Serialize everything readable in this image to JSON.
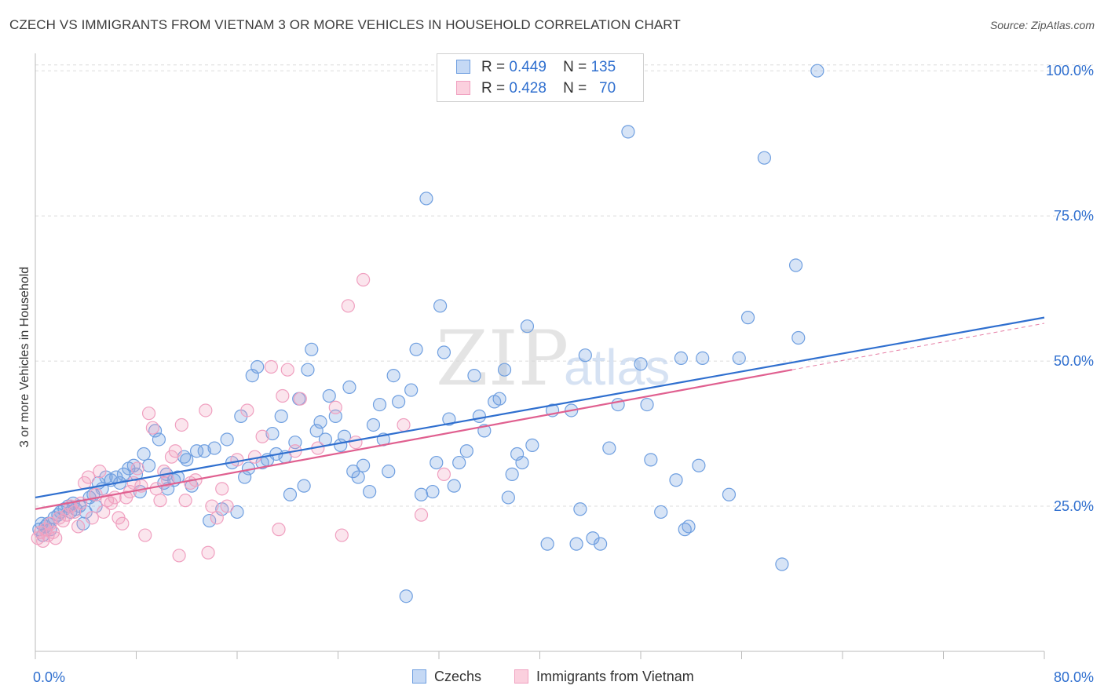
{
  "title": "CZECH VS IMMIGRANTS FROM VIETNAM 3 OR MORE VEHICLES IN HOUSEHOLD CORRELATION CHART",
  "source": "Source: ZipAtlas.com",
  "watermark": {
    "zip": "ZIP",
    "atlas": "atlas"
  },
  "legend": {
    "rows": [
      {
        "r_label": "R =",
        "r": "0.449",
        "n_label": "N =",
        "n": "135"
      },
      {
        "r_label": "R =",
        "r": "0.428",
        "n_label": "N =",
        "n": "70"
      }
    ]
  },
  "bottom_legend": {
    "czechs": "Czechs",
    "vietnam": "Immigrants from Vietnam"
  },
  "chart_data": {
    "type": "scatter",
    "ylabel": "3 or more Vehicles in Household",
    "xlim": [
      0,
      80
    ],
    "ylim": [
      0,
      103
    ],
    "x_tick_labels": [
      "0.0%",
      "80.0%"
    ],
    "y_tick_labels": [
      "25.0%",
      "50.0%",
      "75.0%",
      "100.0%"
    ],
    "y_ticks": [
      25,
      50,
      75,
      100
    ],
    "grid": true,
    "colors": {
      "czechs": "#6f9fe0",
      "vietnam": "#f0a0c0",
      "czechs_line": "#2f6fcf",
      "vietnam_line": "#e06090",
      "axis_label": "#2f6fcf"
    },
    "series": [
      {
        "name": "Czechs",
        "trend": {
          "x0": 0,
          "y0": 26.5,
          "x1": 80,
          "y1": 57.5
        },
        "points": [
          [
            0.3,
            21
          ],
          [
            0.5,
            22
          ],
          [
            0.6,
            20
          ],
          [
            0.8,
            21.5
          ],
          [
            1,
            22
          ],
          [
            1.2,
            21
          ],
          [
            1.5,
            23
          ],
          [
            1.8,
            23.5
          ],
          [
            2,
            24
          ],
          [
            2.3,
            24.5
          ],
          [
            2.6,
            25
          ],
          [
            2.8,
            24
          ],
          [
            3,
            25.5
          ],
          [
            3.2,
            24.5
          ],
          [
            3.5,
            25
          ],
          [
            3.8,
            22
          ],
          [
            4,
            24
          ],
          [
            4.3,
            26.5
          ],
          [
            4.6,
            27
          ],
          [
            5,
            29
          ],
          [
            5.3,
            28
          ],
          [
            5.6,
            30
          ],
          [
            6,
            29.5
          ],
          [
            6.4,
            30
          ],
          [
            6.7,
            29
          ],
          [
            7,
            30.5
          ],
          [
            7.4,
            31.5
          ],
          [
            7.8,
            32
          ],
          [
            8,
            30.5
          ],
          [
            8.3,
            27.5
          ],
          [
            8.6,
            34
          ],
          [
            9,
            32
          ],
          [
            9.5,
            38
          ],
          [
            9.8,
            36.5
          ],
          [
            10.2,
            29
          ],
          [
            10.5,
            28
          ],
          [
            11,
            29.5
          ],
          [
            11.3,
            30
          ],
          [
            11.8,
            33.5
          ],
          [
            12,
            33
          ],
          [
            12.4,
            28.5
          ],
          [
            12.8,
            34.5
          ],
          [
            13.4,
            34.5
          ],
          [
            13.8,
            22.5
          ],
          [
            14.2,
            35
          ],
          [
            14.8,
            24.5
          ],
          [
            15.2,
            36.5
          ],
          [
            15.6,
            32.5
          ],
          [
            16,
            24
          ],
          [
            16.3,
            40.5
          ],
          [
            16.6,
            30
          ],
          [
            16.9,
            31.5
          ],
          [
            17.2,
            47.5
          ],
          [
            17.6,
            49
          ],
          [
            18,
            32.5
          ],
          [
            18.4,
            33
          ],
          [
            18.8,
            37.5
          ],
          [
            19.1,
            34
          ],
          [
            19.5,
            40.5
          ],
          [
            19.8,
            33.5
          ],
          [
            20.2,
            27
          ],
          [
            20.6,
            36
          ],
          [
            20.9,
            43.5
          ],
          [
            21.3,
            28.5
          ],
          [
            21.6,
            48.5
          ],
          [
            21.9,
            52
          ],
          [
            22.3,
            38
          ],
          [
            22.6,
            39.5
          ],
          [
            23,
            36.5
          ],
          [
            23.3,
            44
          ],
          [
            23.8,
            40.5
          ],
          [
            24.2,
            35.5
          ],
          [
            24.5,
            37
          ],
          [
            24.9,
            45.5
          ],
          [
            25.2,
            31
          ],
          [
            25.6,
            30
          ],
          [
            26,
            32
          ],
          [
            26.5,
            27.5
          ],
          [
            26.8,
            39
          ],
          [
            27.3,
            42.5
          ],
          [
            27.6,
            36.5
          ],
          [
            28,
            31
          ],
          [
            28.4,
            47.5
          ],
          [
            28.8,
            43
          ],
          [
            29.4,
            9.5
          ],
          [
            29.8,
            45
          ],
          [
            30.2,
            52
          ],
          [
            30.6,
            27
          ],
          [
            31,
            78
          ],
          [
            31.5,
            27.5
          ],
          [
            31.8,
            32.5
          ],
          [
            32.1,
            59.5
          ],
          [
            32.4,
            51.5
          ],
          [
            32.8,
            40
          ],
          [
            33.2,
            28.5
          ],
          [
            33.6,
            32.5
          ],
          [
            34.2,
            34.5
          ],
          [
            34.8,
            47.5
          ],
          [
            35.2,
            40.5
          ],
          [
            35.6,
            38
          ],
          [
            36.4,
            43
          ],
          [
            36.8,
            43.5
          ],
          [
            37.2,
            48.5
          ],
          [
            37.5,
            26.5
          ],
          [
            37.8,
            30.5
          ],
          [
            38.2,
            34
          ],
          [
            38.6,
            32.5
          ],
          [
            39,
            56
          ],
          [
            39.4,
            35.5
          ],
          [
            40.6,
            18.5
          ],
          [
            41,
            41.5
          ],
          [
            42.5,
            41.5
          ],
          [
            42.9,
            18.5
          ],
          [
            43.2,
            24.5
          ],
          [
            43.6,
            51
          ],
          [
            44.2,
            19.5
          ],
          [
            44.8,
            18.5
          ],
          [
            45.5,
            35
          ],
          [
            46.2,
            42.5
          ],
          [
            47,
            89.5
          ],
          [
            48,
            49.5
          ],
          [
            48.5,
            42.5
          ],
          [
            48.8,
            33
          ],
          [
            49.6,
            24
          ],
          [
            50.8,
            29.5
          ],
          [
            51.2,
            50.5
          ],
          [
            51.5,
            21
          ],
          [
            51.8,
            21.5
          ],
          [
            52.6,
            32
          ],
          [
            52.9,
            50.5
          ],
          [
            55.8,
            50.5
          ],
          [
            55,
            27
          ],
          [
            56.5,
            57.5
          ],
          [
            57.8,
            85
          ],
          [
            59.2,
            15
          ],
          [
            60.3,
            66.5
          ],
          [
            60.5,
            54
          ],
          [
            62,
            100
          ],
          [
            4.8,
            25
          ],
          [
            10.4,
            30.5
          ]
        ]
      },
      {
        "name": "Immigrants from Vietnam",
        "trend": {
          "x0": 0,
          "y0": 24.5,
          "x1": 60,
          "y1": 48.5,
          "dash_to_x": 80,
          "dash_to_y": 56.5
        },
        "points": [
          [
            0.2,
            19.5
          ],
          [
            0.4,
            20.5
          ],
          [
            0.6,
            19
          ],
          [
            0.8,
            21
          ],
          [
            1,
            20
          ],
          [
            1.2,
            22
          ],
          [
            1.4,
            20.5
          ],
          [
            1.6,
            19.5
          ],
          [
            1.9,
            23
          ],
          [
            2.2,
            22.5
          ],
          [
            2.5,
            23.5
          ],
          [
            2.8,
            25
          ],
          [
            3.1,
            24
          ],
          [
            3.4,
            21.5
          ],
          [
            3.6,
            25.5
          ],
          [
            3.9,
            29
          ],
          [
            4.2,
            30
          ],
          [
            4.5,
            23
          ],
          [
            4.8,
            27
          ],
          [
            5.1,
            31
          ],
          [
            5.4,
            24
          ],
          [
            5.7,
            26
          ],
          [
            6,
            25.5
          ],
          [
            6.3,
            26.5
          ],
          [
            6.6,
            23
          ],
          [
            6.9,
            22
          ],
          [
            7.2,
            26.5
          ],
          [
            7.5,
            27.5
          ],
          [
            7.8,
            29
          ],
          [
            8.1,
            31.5
          ],
          [
            8.4,
            28.5
          ],
          [
            8.7,
            20
          ],
          [
            9,
            41
          ],
          [
            9.3,
            38.5
          ],
          [
            9.6,
            28
          ],
          [
            9.9,
            26
          ],
          [
            10.2,
            31
          ],
          [
            10.5,
            29.5
          ],
          [
            10.8,
            33.5
          ],
          [
            11.1,
            34.5
          ],
          [
            11.4,
            16.5
          ],
          [
            11.6,
            39
          ],
          [
            11.9,
            26
          ],
          [
            12.3,
            29
          ],
          [
            12.7,
            29.5
          ],
          [
            13.5,
            41.5
          ],
          [
            13.7,
            17
          ],
          [
            14,
            25
          ],
          [
            14.4,
            23
          ],
          [
            14.8,
            28
          ],
          [
            15.2,
            25
          ],
          [
            16,
            33
          ],
          [
            16.8,
            41.5
          ],
          [
            17.4,
            33.5
          ],
          [
            18,
            37
          ],
          [
            18.7,
            49
          ],
          [
            19.3,
            21
          ],
          [
            19.6,
            44
          ],
          [
            20,
            48.5
          ],
          [
            20.6,
            34.5
          ],
          [
            21,
            43.5
          ],
          [
            22.4,
            35
          ],
          [
            23.8,
            42
          ],
          [
            24.3,
            20
          ],
          [
            24.8,
            59.5
          ],
          [
            25.4,
            36
          ],
          [
            26,
            64
          ],
          [
            29.2,
            39
          ],
          [
            30.6,
            23.5
          ],
          [
            32.4,
            30.5
          ]
        ]
      }
    ]
  }
}
